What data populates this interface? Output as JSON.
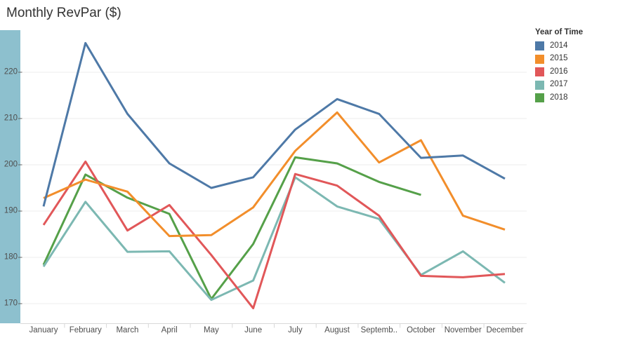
{
  "title": "Monthly RevPar ($)",
  "legend": {
    "title": "Year of Time",
    "items": [
      {
        "label": "2014",
        "color": "#4e79a7"
      },
      {
        "label": "2015",
        "color": "#f28e2b"
      },
      {
        "label": "2016",
        "color": "#e15759"
      },
      {
        "label": "2017",
        "color": "#7cb8b2"
      },
      {
        "label": "2018",
        "color": "#55a049"
      }
    ]
  },
  "y_axis": {
    "tick_labels": [
      "220",
      "210",
      "200",
      "190",
      "180",
      "170"
    ],
    "highlight_color": "#8dc0ce"
  },
  "x_axis": {
    "tick_labels": [
      "January",
      "February",
      "March",
      "April",
      "May",
      "June",
      "July",
      "August",
      "Septemb..",
      "October",
      "November",
      "December"
    ]
  },
  "chart_data": {
    "type": "line",
    "title": "Monthly RevPar ($)",
    "categories": [
      "January",
      "February",
      "March",
      "April",
      "May",
      "June",
      "July",
      "August",
      "September",
      "October",
      "November",
      "December"
    ],
    "yticks": [
      170,
      180,
      190,
      200,
      210,
      220
    ],
    "ylim": [
      165.5,
      229.5
    ],
    "grid": "horizontal",
    "legend_position": "right",
    "legend_title": "Year of Time",
    "series": [
      {
        "name": "2014",
        "color": "#4e79a7",
        "values": [
          191,
          226.3,
          211,
          200.3,
          195,
          197.3,
          207.6,
          214.2,
          211,
          201.5,
          202,
          197
        ]
      },
      {
        "name": "2015",
        "color": "#f28e2b",
        "values": [
          192.8,
          196.8,
          194.2,
          184.6,
          184.8,
          190.8,
          203,
          211.3,
          200.5,
          205.3,
          189,
          186
        ]
      },
      {
        "name": "2016",
        "color": "#e15759",
        "values": [
          187,
          200.7,
          185.8,
          191.3,
          180.5,
          169,
          198,
          195.5,
          189,
          176,
          175.7,
          176.4
        ]
      },
      {
        "name": "2017",
        "color": "#7cb8b2",
        "values": [
          178,
          192,
          181.2,
          181.3,
          170.8,
          175,
          197.3,
          191,
          188.3,
          176.2,
          181.3,
          174.5
        ]
      },
      {
        "name": "2018",
        "color": "#55a049",
        "values": [
          178.4,
          197.9,
          192.9,
          189.4,
          171,
          182.9,
          201.6,
          200.3,
          196.3,
          193.5,
          null,
          null
        ]
      }
    ]
  }
}
